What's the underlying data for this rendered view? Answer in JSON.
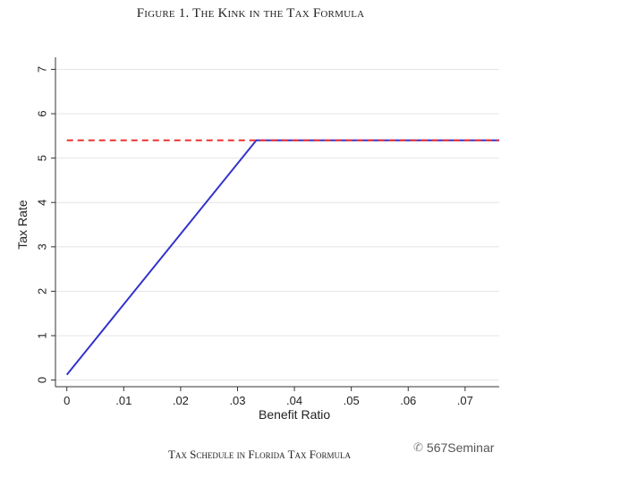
{
  "figure": {
    "title": "Figure 1. The Kink in the Tax Formula",
    "caption": "Tax Schedule in Florida Tax Formula",
    "watermark": "567Seminar",
    "watermark_icon": "wechat-icon"
  },
  "chart_data": {
    "type": "line",
    "title": "",
    "xlabel": "Benefit Ratio",
    "ylabel": "Tax Rate",
    "xlim": [
      -0.002,
      0.076
    ],
    "ylim": [
      -0.15,
      7.15
    ],
    "x_ticks": [
      0,
      0.01,
      0.02,
      0.03,
      0.04,
      0.05,
      0.06,
      0.07
    ],
    "x_tick_labels": [
      "0",
      ".01",
      ".02",
      ".03",
      ".04",
      ".05",
      ".06",
      ".07"
    ],
    "y_ticks": [
      0,
      1,
      2,
      3,
      4,
      5,
      6,
      7
    ],
    "y_tick_labels": [
      "0",
      "1",
      "2",
      "3",
      "4",
      "5",
      "6",
      "7"
    ],
    "grid": true,
    "series": [
      {
        "style": "solid",
        "color": "#3333cc",
        "x": [
          0,
          0.0333,
          0.076
        ],
        "y": [
          0.12,
          5.4,
          5.4
        ]
      },
      {
        "style": "dashed",
        "color": "#ee3333",
        "x": [
          0.0,
          0.076
        ],
        "y": [
          5.4,
          5.4
        ]
      }
    ]
  }
}
